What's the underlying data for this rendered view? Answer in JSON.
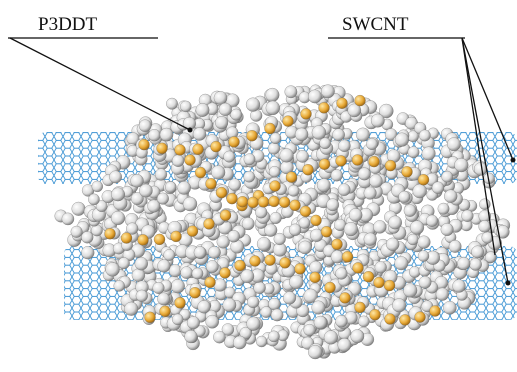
{
  "labels": [
    "P3DDT",
    "SWCNT"
  ]
}
